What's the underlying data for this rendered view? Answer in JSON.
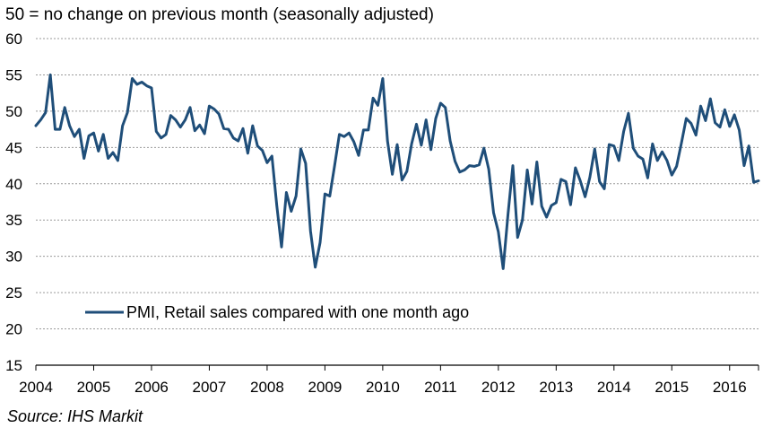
{
  "chart_data": {
    "type": "line",
    "subtitle": "50 = no change on previous month  (seasonally adjusted)",
    "source": "Source: IHS Markit",
    "xlabel": "",
    "ylabel": "",
    "ylim": [
      15,
      60
    ],
    "y_ticks": [
      "15",
      "20",
      "25",
      "30",
      "35",
      "40",
      "45",
      "50",
      "55",
      "60"
    ],
    "xlim": [
      2004.0,
      2016.5
    ],
    "x_ticks": [
      "2004",
      "2005",
      "2006",
      "2007",
      "2008",
      "2009",
      "2010",
      "2011",
      "2012",
      "2013",
      "2014",
      "2015",
      "2016"
    ],
    "grid": true,
    "legend_position": "lower-left",
    "series": [
      {
        "name": "PMI, Retail sales compared with one month ago",
        "color": "#1f4e79",
        "x": [
          2004.0,
          2004.083,
          2004.167,
          2004.25,
          2004.333,
          2004.417,
          2004.5,
          2004.583,
          2004.667,
          2004.75,
          2004.833,
          2004.917,
          2005.0,
          2005.083,
          2005.167,
          2005.25,
          2005.333,
          2005.417,
          2005.5,
          2005.583,
          2005.667,
          2005.75,
          2005.833,
          2005.917,
          2006.0,
          2006.083,
          2006.167,
          2006.25,
          2006.333,
          2006.417,
          2006.5,
          2006.583,
          2006.667,
          2006.75,
          2006.833,
          2006.917,
          2007.0,
          2007.083,
          2007.167,
          2007.25,
          2007.333,
          2007.417,
          2007.5,
          2007.583,
          2007.667,
          2007.75,
          2007.833,
          2007.917,
          2008.0,
          2008.083,
          2008.167,
          2008.25,
          2008.333,
          2008.417,
          2008.5,
          2008.583,
          2008.667,
          2008.75,
          2008.833,
          2008.917,
          2009.0,
          2009.083,
          2009.167,
          2009.25,
          2009.333,
          2009.417,
          2009.5,
          2009.583,
          2009.667,
          2009.75,
          2009.833,
          2009.917,
          2010.0,
          2010.083,
          2010.167,
          2010.25,
          2010.333,
          2010.417,
          2010.5,
          2010.583,
          2010.667,
          2010.75,
          2010.833,
          2010.917,
          2011.0,
          2011.083,
          2011.167,
          2011.25,
          2011.333,
          2011.417,
          2011.5,
          2011.583,
          2011.667,
          2011.75,
          2011.833,
          2011.917,
          2012.0,
          2012.083,
          2012.167,
          2012.25,
          2012.333,
          2012.417,
          2012.5,
          2012.583,
          2012.667,
          2012.75,
          2012.833,
          2012.917,
          2013.0,
          2013.083,
          2013.167,
          2013.25,
          2013.333,
          2013.417,
          2013.5,
          2013.583,
          2013.667,
          2013.75,
          2013.833,
          2013.917,
          2014.0,
          2014.083,
          2014.167,
          2014.25,
          2014.333,
          2014.417,
          2014.5,
          2014.583,
          2014.667,
          2014.75,
          2014.833,
          2014.917,
          2015.0,
          2015.083,
          2015.167,
          2015.25,
          2015.333,
          2015.417,
          2015.5,
          2015.583,
          2015.667,
          2015.75,
          2015.833,
          2015.917,
          2016.0,
          2016.083,
          2016.167,
          2016.25,
          2016.333,
          2016.417,
          2016.5
        ],
        "values": [
          48.0,
          48.8,
          49.8,
          55.0,
          47.5,
          47.5,
          50.5,
          48.0,
          46.5,
          47.5,
          43.5,
          46.6,
          47.0,
          44.5,
          46.8,
          43.5,
          44.3,
          43.2,
          48.0,
          49.8,
          54.5,
          53.7,
          54.0,
          53.5,
          53.2,
          47.2,
          46.3,
          46.8,
          49.4,
          48.8,
          47.8,
          48.8,
          50.5,
          47.3,
          48.1,
          46.9,
          50.7,
          50.3,
          49.6,
          47.6,
          47.5,
          46.3,
          45.9,
          47.6,
          44.2,
          48.0,
          45.2,
          44.6,
          42.9,
          43.8,
          37.0,
          31.3,
          38.8,
          36.2,
          38.3,
          44.8,
          42.8,
          33.5,
          28.5,
          31.9,
          38.6,
          38.3,
          42.5,
          46.8,
          46.5,
          47.0,
          45.8,
          43.9,
          47.4,
          47.4,
          51.8,
          50.8,
          54.5,
          45.9,
          41.3,
          45.4,
          40.5,
          41.7,
          45.5,
          48.2,
          45.3,
          48.8,
          44.7,
          49.0,
          51.1,
          50.5,
          45.9,
          43.1,
          41.6,
          41.9,
          42.5,
          42.4,
          42.6,
          44.9,
          42.0,
          36.0,
          33.4,
          28.3,
          35.8,
          42.5,
          32.6,
          35.0,
          41.9,
          37.2,
          43.0,
          36.9,
          35.4,
          37.0,
          37.4,
          40.6,
          40.3,
          37.1,
          42.2,
          40.4,
          38.2,
          40.9,
          44.8,
          40.3,
          39.3,
          45.4,
          45.2,
          43.2,
          47.2,
          49.7,
          44.9,
          43.8,
          43.4,
          40.8,
          45.5,
          43.2,
          44.4,
          43.2,
          41.2,
          42.4,
          45.6,
          49.0,
          48.3,
          46.7,
          50.7,
          48.7,
          51.7,
          48.4,
          47.8,
          50.2,
          47.9,
          49.5,
          47.4,
          42.5,
          45.2,
          40.2,
          40.4
        ]
      }
    ]
  }
}
